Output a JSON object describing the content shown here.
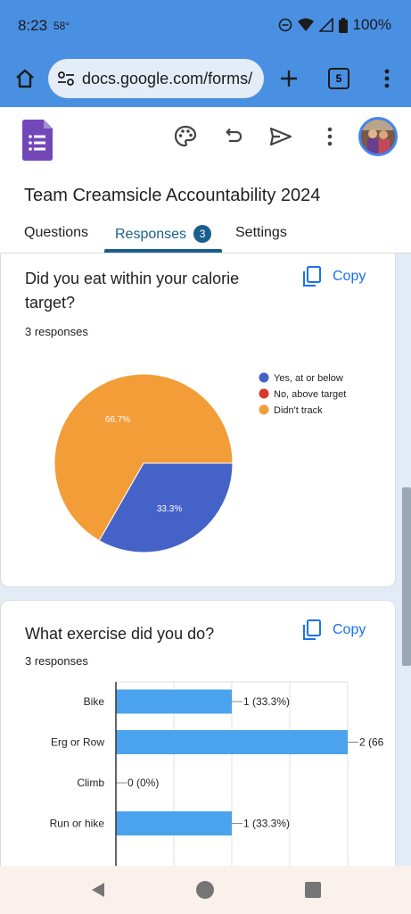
{
  "status_bar": {
    "time": "8:23",
    "temperature": "58°",
    "battery": "100%"
  },
  "browser": {
    "url": "docs.google.com/forms/",
    "tab_count": "5"
  },
  "form": {
    "title": "Team Creamsicle Accountability 2024",
    "tabs": [
      {
        "label": "Questions"
      },
      {
        "label": "Responses",
        "badge": "3"
      },
      {
        "label": "Settings"
      }
    ]
  },
  "cards": [
    {
      "question": "Did you eat within your calorie target?",
      "responses": "3 responses",
      "copy_label": "Copy",
      "chart_data": {
        "type": "pie",
        "categories": [
          "Yes, at or below",
          "No, above target",
          "Didn't track"
        ],
        "values": [
          33.3,
          0,
          66.7
        ],
        "labels": [
          "33.3%",
          "",
          "66.7%"
        ],
        "colors": [
          "#4462c7",
          "#d93a2b",
          "#f29d38"
        ],
        "legend_position": "right"
      }
    },
    {
      "question": "What exercise did you do?",
      "responses": "3 responses",
      "copy_label": "Copy",
      "chart_data": {
        "type": "bar",
        "orientation": "horizontal",
        "categories": [
          "Bike",
          "Erg or Row",
          "Climb",
          "Run or hike"
        ],
        "values": [
          1,
          2,
          0,
          1
        ],
        "labels": [
          "1 (33.3%)",
          "2 (66",
          "0 (0%)",
          "1 (33.3%)"
        ],
        "xlim": [
          0,
          2
        ],
        "grid": true,
        "color": "#4aa3ec"
      }
    }
  ],
  "icons": {
    "home": "home-icon",
    "tune": "tune-icon",
    "plus": "plus-icon",
    "more": "more-vert-icon",
    "palette": "palette-icon",
    "undo": "undo-icon",
    "send": "send-icon",
    "copy": "copy-icon",
    "back": "back-icon",
    "home_nav": "home-nav-icon",
    "recents": "recents-icon"
  }
}
